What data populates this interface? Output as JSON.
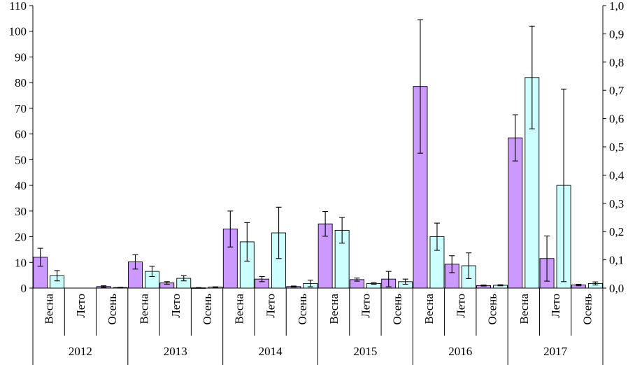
{
  "chart_data": {
    "type": "bar",
    "y_left": {
      "min": 0,
      "max": 110,
      "step": 10,
      "ticks": [
        "0",
        "10",
        "20",
        "30",
        "40",
        "50",
        "60",
        "70",
        "80",
        "90",
        "100",
        "110"
      ]
    },
    "y_right": {
      "min": 0,
      "max": 1.0,
      "step": 0.1,
      "ticks": [
        "0,0",
        "0,1",
        "0,2",
        "0,3",
        "0,4",
        "0,5",
        "0,6",
        "0,7",
        "0,8",
        "0,9",
        "1,0"
      ]
    },
    "groups": [
      "2012",
      "2013",
      "2014",
      "2015",
      "2016",
      "2017"
    ],
    "seasons": [
      "Весна",
      "Лето",
      "Осень"
    ],
    "series": [
      {
        "color": "#cc99ff",
        "axis": "left",
        "values": [
          12,
          null,
          0.6,
          10.2,
          2.0,
          0.1,
          23,
          3.5,
          0.6,
          25,
          3.3,
          3.5,
          78.5,
          9.3,
          1.0,
          58.5,
          11.5,
          1.2
        ],
        "errors": [
          3.5,
          null,
          0.3,
          2.8,
          0.5,
          0.1,
          7,
          1.0,
          0.2,
          4.8,
          0.6,
          3.0,
          26,
          3.3,
          0.2,
          9,
          8.8,
          0.3
        ]
      },
      {
        "color": "#ccffff",
        "axis": "left",
        "values": [
          4.8,
          null,
          0.2,
          6.5,
          3.8,
          0.4,
          18,
          21.5,
          1.8,
          22.5,
          1.8,
          2.5,
          20,
          8.7,
          1.1,
          82,
          40,
          1.8
        ],
        "errors": [
          2.0,
          null,
          0.1,
          2.0,
          1.0,
          0.1,
          7.5,
          10,
          1.3,
          5,
          0.3,
          1.0,
          5.3,
          5.0,
          0.2,
          20,
          37.5,
          0.6
        ]
      }
    ]
  }
}
